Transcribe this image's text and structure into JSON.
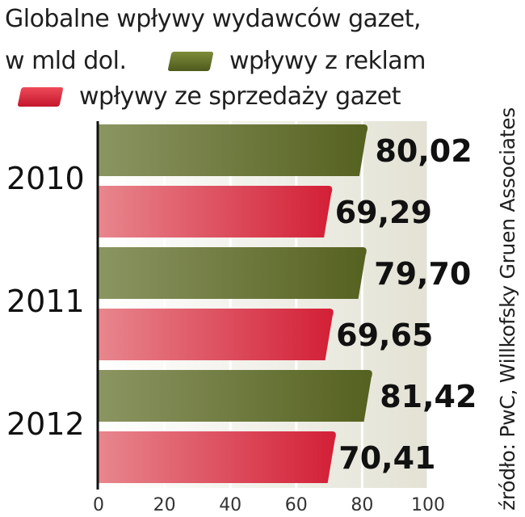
{
  "header": {
    "title_line1": "Globalne wpływy wydawców gazet,",
    "title_line2": "w mld dol."
  },
  "legend": [
    {
      "label": "wpływy z reklam",
      "color": "#6b7a2c"
    },
    {
      "label": "wpływy ze sprzedaży gazet",
      "color": "#d8253a"
    }
  ],
  "source": "źródło: PwC, Willkofsky Gruen Associates",
  "chart_data": {
    "type": "bar",
    "orientation": "horizontal",
    "title": "Globalne wpływy wydawców gazet, w mld dol.",
    "categories": [
      "2010",
      "2011",
      "2012"
    ],
    "series": [
      {
        "name": "wpływy z reklam",
        "values": [
          80.02,
          79.7,
          81.42
        ],
        "labels": [
          "80,02",
          "79,70",
          "81,42"
        ],
        "color": "#6b7a2c"
      },
      {
        "name": "wpływy ze sprzedaży gazet",
        "values": [
          69.29,
          69.65,
          70.41
        ],
        "labels": [
          "69,29",
          "69,65",
          "70,41"
        ],
        "color": "#d8253a"
      }
    ],
    "xlim": [
      0,
      100
    ],
    "xticks": [
      "0",
      "20",
      "40",
      "60",
      "80",
      "100"
    ],
    "grid": true
  }
}
